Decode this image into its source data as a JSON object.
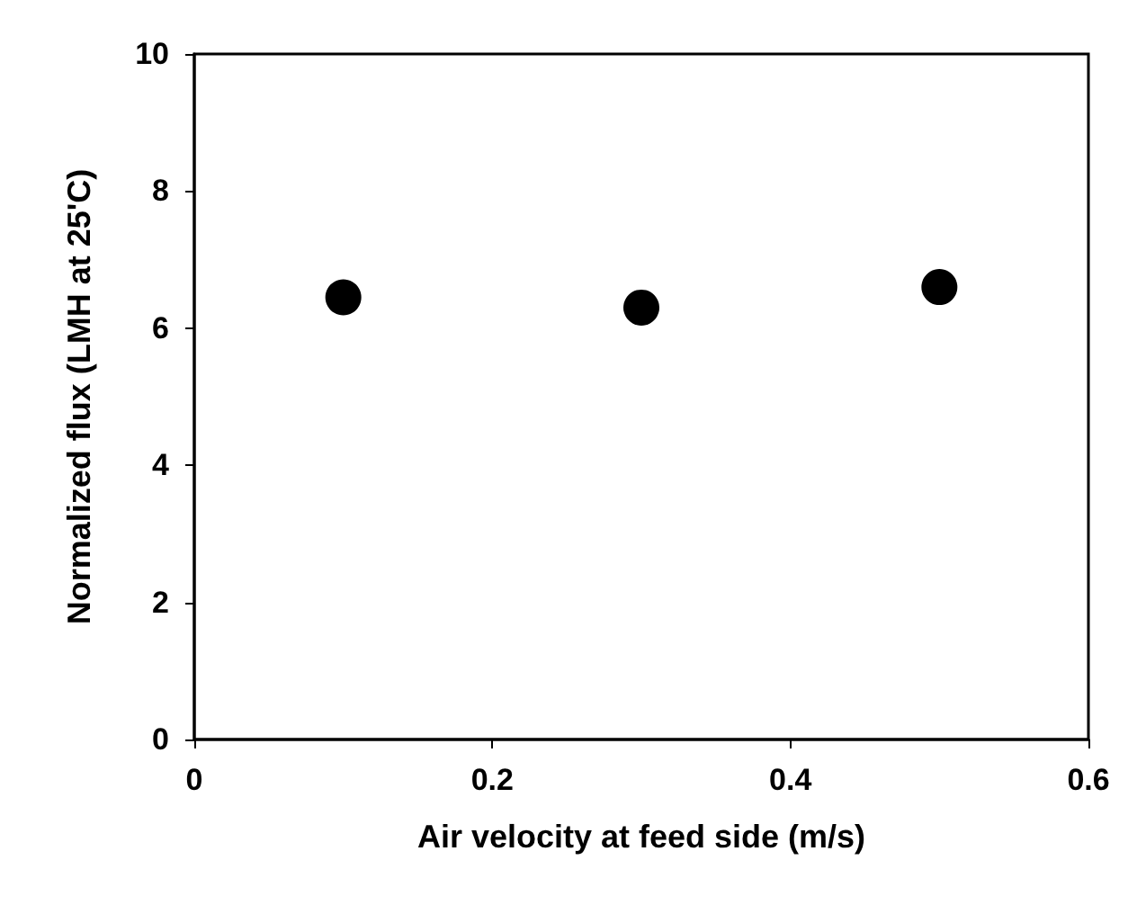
{
  "chart_data": {
    "type": "scatter",
    "xlabel": "Air velocity at feed side (m/s)",
    "ylabel": "Normalized flux (LMH at 25'C)",
    "x": [
      0.1,
      0.3,
      0.5
    ],
    "values": [
      6.45,
      6.3,
      6.6
    ],
    "color": "#000000",
    "marker": "circle",
    "xlim": [
      0,
      0.6
    ],
    "xticks": [
      0,
      0.2,
      0.4,
      0.6
    ],
    "ylim": [
      0,
      10
    ],
    "yticks": [
      0,
      2,
      4,
      6,
      8,
      10
    ],
    "grid": false
  }
}
